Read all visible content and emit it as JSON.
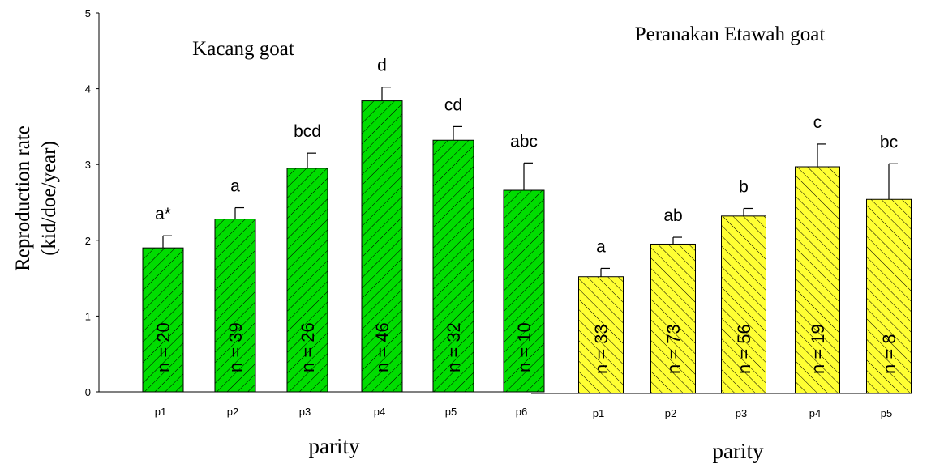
{
  "chart_data": {
    "type": "bar",
    "ylabel_line1": "Reproduction rate",
    "ylabel_line2": "(kid/doe/year)",
    "ylim": [
      0,
      5
    ],
    "yticks": [
      "0",
      "1",
      "2",
      "3",
      "4",
      "5"
    ],
    "grid": false,
    "panels": [
      {
        "title": "Kacang goat",
        "xlabel": "parity",
        "color": "#00dd00",
        "hatch": "forward",
        "categories": [
          "p1",
          "p2",
          "p3",
          "p4",
          "p5",
          "p6"
        ],
        "values": [
          1.9,
          2.28,
          2.95,
          3.84,
          3.32,
          2.66
        ],
        "errors": [
          0.16,
          0.15,
          0.2,
          0.18,
          0.18,
          0.36
        ],
        "letters": [
          "a*",
          "a",
          "bcd",
          "d",
          "cd",
          "abc"
        ],
        "n_labels": [
          "n = 20",
          "n = 39",
          "n = 26",
          "n = 46",
          "n = 32",
          "n = 10"
        ]
      },
      {
        "title": "Peranakan Etawah goat",
        "xlabel": "parity",
        "color": "#ffff33",
        "hatch": "back",
        "categories": [
          "p1",
          "p2",
          "p3",
          "p4",
          "p5"
        ],
        "values": [
          1.52,
          1.95,
          2.32,
          2.97,
          2.54
        ],
        "errors": [
          0.11,
          0.09,
          0.1,
          0.3,
          0.47
        ],
        "letters": [
          "a",
          "ab",
          "b",
          "c",
          "bc"
        ],
        "n_labels": [
          "n = 33",
          "n = 73",
          "n = 56",
          "n = 19",
          "n = 8"
        ]
      }
    ]
  }
}
